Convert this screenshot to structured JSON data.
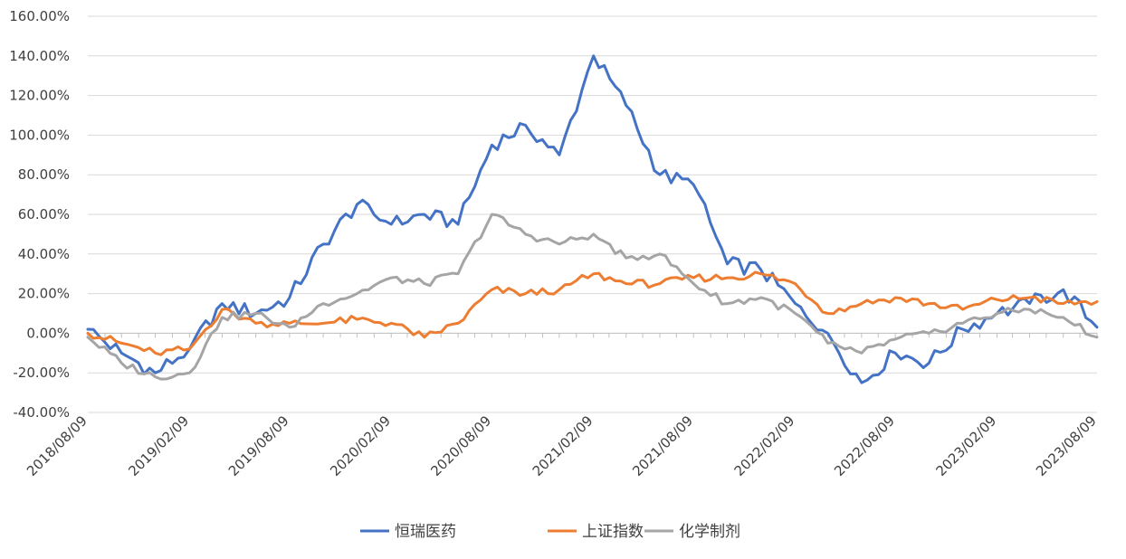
{
  "chart_data": {
    "type": "line",
    "title": "",
    "xlabel": "",
    "ylabel": "",
    "x_tick_labels": [
      "2018/08/09",
      "2019/02/09",
      "2019/08/09",
      "2020/02/09",
      "2020/08/09",
      "2021/02/09",
      "2021/08/09",
      "2022/02/09",
      "2022/08/09",
      "2023/02/09",
      "2023/08/09"
    ],
    "y_tick_labels": [
      "-40.00%",
      "-20.00%",
      "0.00%",
      "20.00%",
      "40.00%",
      "60.00%",
      "80.00%",
      "100.00%",
      "120.00%",
      "140.00%",
      "160.00%"
    ],
    "ylim": [
      -40,
      160
    ],
    "y_unit": "%",
    "grid": "horizontal",
    "legend_position": "bottom",
    "x": [
      "2018/08/09",
      "2018/10/09",
      "2018/12/09",
      "2019/02/09",
      "2019/04/09",
      "2019/06/09",
      "2019/08/09",
      "2019/10/09",
      "2019/12/09",
      "2020/02/09",
      "2020/04/09",
      "2020/06/09",
      "2020/08/09",
      "2020/10/09",
      "2020/12/09",
      "2021/02/09",
      "2021/04/09",
      "2021/06/09",
      "2021/08/09",
      "2021/10/09",
      "2021/12/09",
      "2022/02/09",
      "2022/04/09",
      "2022/06/09",
      "2022/08/09",
      "2022/10/09",
      "2022/12/09",
      "2023/02/09",
      "2023/04/09",
      "2023/06/09",
      "2023/08/09"
    ],
    "series": [
      {
        "name": "恒瑞医药",
        "color": "#4472c4",
        "values": [
          2,
          -10,
          -20,
          -8,
          15,
          10,
          18,
          45,
          65,
          55,
          60,
          55,
          95,
          105,
          90,
          140,
          115,
          80,
          75,
          35,
          32,
          15,
          0,
          -25,
          -10,
          -15,
          2,
          10,
          15,
          22,
          3
        ]
      },
      {
        "name": "上证指数",
        "color": "#ed7d31",
        "values": [
          0,
          -5,
          -10,
          -8,
          12,
          5,
          5,
          5,
          7,
          5,
          -2,
          5,
          22,
          20,
          22,
          30,
          25,
          25,
          28,
          28,
          30,
          25,
          10,
          15,
          18,
          15,
          12,
          17,
          18,
          15,
          16
        ]
      },
      {
        "name": "化学制剂",
        "color": "#a5a5a5",
        "values": [
          -2,
          -15,
          -22,
          -20,
          8,
          10,
          3,
          15,
          20,
          28,
          25,
          30,
          60,
          50,
          45,
          50,
          38,
          40,
          25,
          15,
          18,
          10,
          -5,
          -10,
          -3,
          0,
          5,
          10,
          12,
          8,
          -2
        ]
      }
    ]
  }
}
